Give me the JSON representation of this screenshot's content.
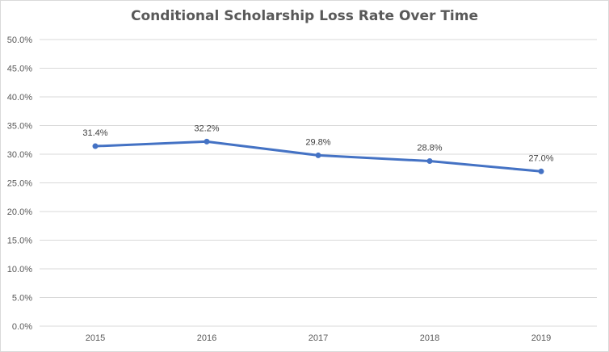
{
  "chart_data": {
    "type": "line",
    "title": "Conditional Scholarship Loss Rate Over Time",
    "xlabel": "",
    "ylabel": "",
    "categories": [
      "2015",
      "2016",
      "2017",
      "2018",
      "2019"
    ],
    "series": [
      {
        "values": [
          31.4,
          32.2,
          29.8,
          28.8,
          27.0
        ],
        "data_labels": [
          "31.4%",
          "32.2%",
          "29.8%",
          "28.8%",
          "27.0%"
        ],
        "color": "#4472c4"
      }
    ],
    "ylim": [
      0,
      50
    ],
    "yticks": [
      0,
      5,
      10,
      15,
      20,
      25,
      30,
      35,
      40,
      45,
      50
    ],
    "ytick_labels": [
      "0.0%",
      "5.0%",
      "10.0%",
      "15.0%",
      "20.0%",
      "25.0%",
      "30.0%",
      "35.0%",
      "40.0%",
      "45.0%",
      "50.0%"
    ],
    "grid": true,
    "legend": "none",
    "colors": {
      "gridline": "#d9d9d9",
      "axis_text": "#595959",
      "title": "#595959"
    }
  }
}
